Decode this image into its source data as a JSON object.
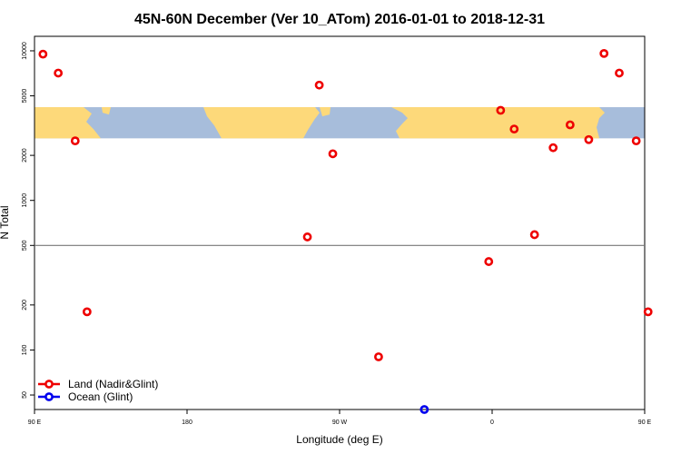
{
  "chart_data": {
    "type": "scatter",
    "title": "45N-60N December (Ver 10_ATom)   2016-01-01 to 2018-12-31",
    "xlabel": "Longitude (deg E)",
    "ylabel": "N Total",
    "y_scale": "log",
    "xlim": [
      90,
      450
    ],
    "ylim": [
      40,
      12500
    ],
    "x_ticks": [
      {
        "value": 90,
        "label": "90 E"
      },
      {
        "value": 180,
        "label": "180"
      },
      {
        "value": 270,
        "label": "90 W"
      },
      {
        "value": 360,
        "label": "0"
      },
      {
        "value": 450,
        "label": "90 E"
      },
      {
        "value": 540,
        "label": "180"
      }
    ],
    "y_ticks": [
      {
        "value": 50,
        "label": "50"
      },
      {
        "value": 100,
        "label": "100"
      },
      {
        "value": 200,
        "label": "200"
      },
      {
        "value": 500,
        "label": "500"
      },
      {
        "value": 1000,
        "label": "1000"
      },
      {
        "value": 2000,
        "label": "2000"
      },
      {
        "value": 5000,
        "label": "5000"
      },
      {
        "value": 10000,
        "label": "10000"
      }
    ],
    "reference_line_y": 500,
    "map_band": {
      "y_top": 4200,
      "y_bottom": 2600
    },
    "legend_position": "bottom-left",
    "series": [
      {
        "name": "Land (Nadir&Glint)",
        "color": "#ee0000",
        "points": [
          {
            "x": 95,
            "y": 9500
          },
          {
            "x": 104,
            "y": 7100
          },
          {
            "x": 114,
            "y": 2500
          },
          {
            "x": 121,
            "y": 180
          },
          {
            "x": 251,
            "y": 570
          },
          {
            "x": 258,
            "y": 5900
          },
          {
            "x": 266,
            "y": 2050
          },
          {
            "x": 293,
            "y": 90
          },
          {
            "x": 358,
            "y": 390
          },
          {
            "x": 365,
            "y": 4000
          },
          {
            "x": 373,
            "y": 3000
          },
          {
            "x": 385,
            "y": 590
          },
          {
            "x": 396,
            "y": 2250
          },
          {
            "x": 406,
            "y": 3200
          },
          {
            "x": 417,
            "y": 2550
          },
          {
            "x": 426,
            "y": 9600
          },
          {
            "x": 435,
            "y": 7100
          },
          {
            "x": 445,
            "y": 2500
          },
          {
            "x": 452,
            "y": 180
          }
        ]
      },
      {
        "name": "Ocean (Glint)",
        "color": "#0000ee",
        "points": [
          {
            "x": 320,
            "y": 40
          }
        ]
      }
    ]
  },
  "colors": {
    "ocean": "#a7bddb",
    "land": "#fdd97a",
    "reference_line": "#777777",
    "axis": "#000000"
  }
}
